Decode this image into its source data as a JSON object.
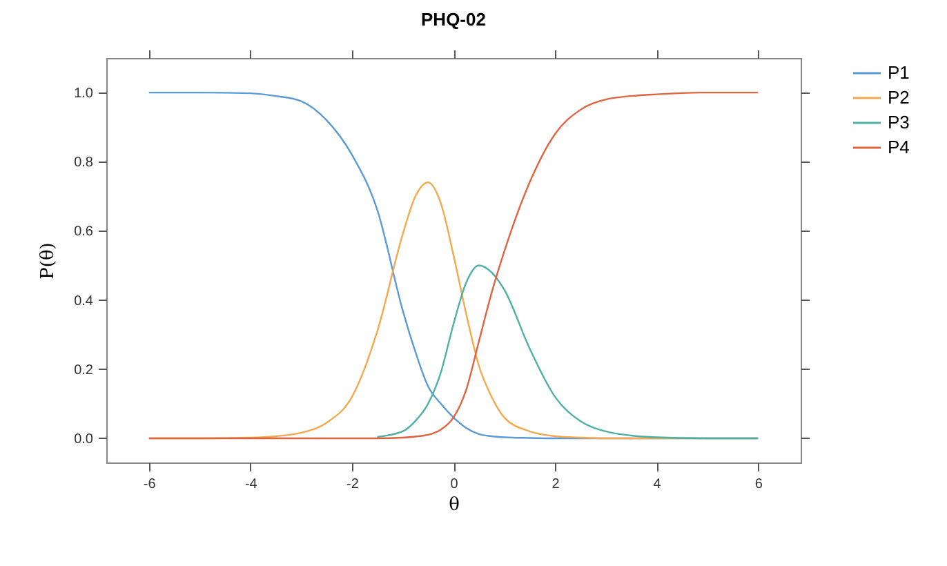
{
  "chart_data": {
    "type": "line",
    "title": "PHQ-02",
    "xlabel": "θ",
    "ylabel": "P(θ)",
    "x": [
      -6,
      -5,
      -4,
      -3.5,
      -3,
      -2.5,
      -2,
      -1.5,
      -1,
      -0.75,
      -0.5,
      -0.25,
      0,
      0.25,
      0.5,
      0.75,
      1,
      1.5,
      2,
      2.5,
      3,
      3.5,
      4,
      5,
      6
    ],
    "series": [
      {
        "name": "P1",
        "color": "#5b9bd5",
        "values": [
          1,
          1,
          0.998,
          0.99,
          0.975,
          0.92,
          0.82,
          0.66,
          0.37,
          0.25,
          0.15,
          0.1,
          0.06,
          0.03,
          0.012,
          0.006,
          0.003,
          0.001,
          0,
          0,
          0,
          0,
          0,
          0,
          0
        ]
      },
      {
        "name": "P2",
        "color": "#f5a84e",
        "values": [
          0,
          0,
          0.002,
          0.006,
          0.016,
          0.045,
          0.12,
          0.31,
          0.59,
          0.7,
          0.74,
          0.68,
          0.53,
          0.36,
          0.21,
          0.12,
          0.06,
          0.02,
          0.006,
          0.002,
          0,
          0,
          0,
          0,
          0
        ]
      },
      {
        "name": "P3",
        "color": "#4fb0a5",
        "values": [
          null,
          null,
          null,
          null,
          null,
          null,
          null,
          0.004,
          0.02,
          0.05,
          0.1,
          0.19,
          0.33,
          0.45,
          0.5,
          0.48,
          0.43,
          0.26,
          0.12,
          0.05,
          0.02,
          0.008,
          0.003,
          0,
          0
        ]
      },
      {
        "name": "P4",
        "color": "#e0643f",
        "values": [
          0,
          0,
          0,
          0,
          0,
          0,
          0,
          0,
          0.002,
          0.005,
          0.01,
          0.025,
          0.06,
          0.14,
          0.28,
          0.42,
          0.54,
          0.74,
          0.88,
          0.95,
          0.98,
          0.99,
          0.995,
          1,
          1
        ]
      }
    ],
    "xlim": [
      -6.84,
      6.84
    ],
    "ylim": [
      -0.07,
      1.1
    ],
    "xticks": [
      -6,
      -4,
      -2,
      0,
      2,
      4,
      6
    ],
    "yticks": [
      {
        "value": 0,
        "label": "0.0"
      },
      0.2,
      0.4,
      0.6,
      0.8,
      {
        "value": 1,
        "label": "1.0"
      }
    ],
    "legend": "right"
  }
}
